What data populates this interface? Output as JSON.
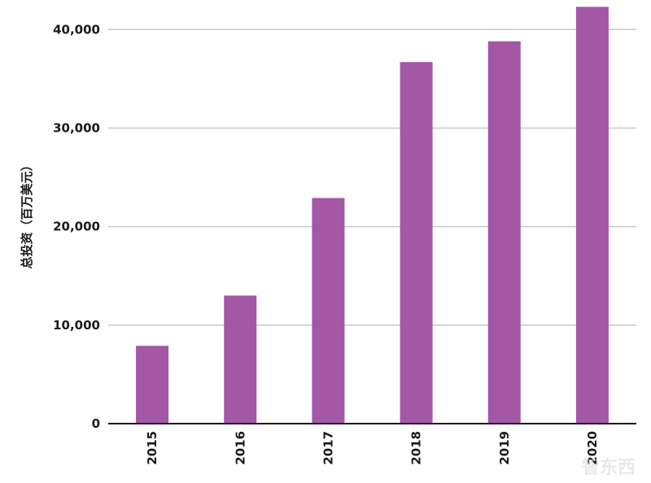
{
  "chart_data": {
    "type": "bar",
    "title": "",
    "xlabel": "",
    "ylabel": "总投资（百万美元）",
    "categories": [
      "2015",
      "2016",
      "2017",
      "2018",
      "2019",
      "2020"
    ],
    "values": [
      7900,
      13000,
      22900,
      36700,
      38800,
      42300
    ],
    "ylim": [
      0,
      42500
    ],
    "yticks": [
      0,
      10000,
      20000,
      30000,
      40000
    ],
    "ytick_labels": [
      "0",
      "10,000",
      "20,000",
      "30,000",
      "40,000"
    ],
    "grid": true,
    "legend": "none",
    "colors": {
      "bar": "#a457a4",
      "grid": "#c8c8c8",
      "axis": "#1a1a1a",
      "text": "#1a1a1a"
    }
  },
  "watermark": {
    "text": "智东西"
  }
}
